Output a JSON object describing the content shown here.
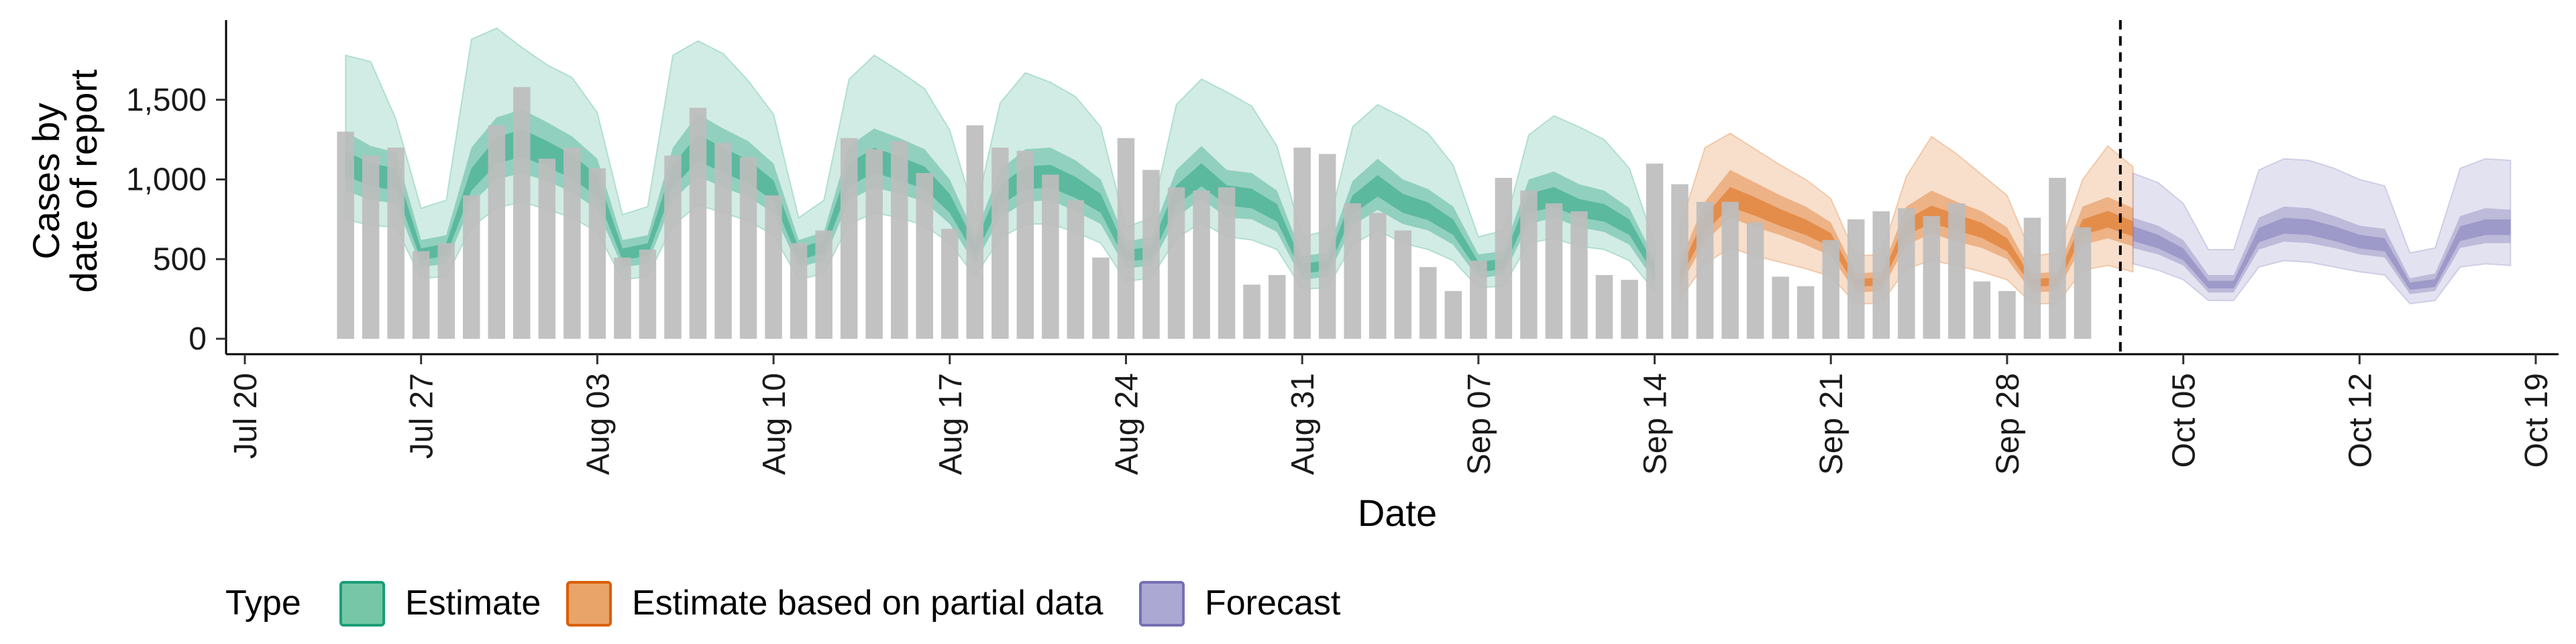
{
  "chart_data": {
    "type": "bar",
    "title": "",
    "xlabel": "Date",
    "ylabel_lines": [
      "Cases by",
      "date of report"
    ],
    "ylim": [
      0,
      2000
    ],
    "y_ticks": [
      0,
      500,
      1000,
      1500
    ],
    "y_tick_labels": [
      "0",
      "500",
      "1,000",
      "1,500"
    ],
    "x_tick_labels": [
      "Jul 20",
      "Jul 27",
      "Aug 03",
      "Aug 10",
      "Aug 17",
      "Aug 24",
      "Aug 31",
      "Sep 07",
      "Sep 14",
      "Sep 21",
      "Sep 28",
      "Oct 05",
      "Oct 12",
      "Oct 19"
    ],
    "x_axis": {
      "start_label": "Jul 20",
      "end_label": "Oct 19",
      "start_day": 0,
      "end_day": 91
    },
    "first_bar_day": 4,
    "bars": [
      1300,
      1150,
      1200,
      550,
      600,
      900,
      1340,
      1580,
      1130,
      1200,
      1070,
      510,
      560,
      1150,
      1450,
      1230,
      1140,
      900,
      600,
      680,
      1260,
      1190,
      1240,
      1040,
      690,
      1340,
      1200,
      1180,
      1030,
      870,
      510,
      1260,
      1060,
      950,
      930,
      950,
      340,
      400,
      1200,
      1160,
      850,
      790,
      680,
      450,
      300,
      490,
      1010,
      930,
      850,
      800,
      400,
      370,
      1100,
      970,
      860,
      860,
      730,
      390,
      330,
      620,
      750,
      800,
      820,
      770,
      850,
      360,
      300,
      760,
      1010,
      700
    ],
    "forecast_cutoff_day": 74.5,
    "bands": [
      {
        "type": "Estimate",
        "start_day": 4,
        "median": [
          1100,
          1030,
          1000,
          530,
          560,
          1000,
          1180,
          1230,
          1160,
          1080,
          960,
          530,
          560,
          1020,
          1200,
          1120,
          1050,
          930,
          530,
          580,
          1030,
          1120,
          1070,
          1010,
          850,
          560,
          900,
          1010,
          1020,
          950,
          850,
          520,
          540,
          900,
          1030,
          900,
          880,
          790,
          440,
          460,
          840,
          960,
          850,
          800,
          700,
          450,
          470,
          850,
          890,
          820,
          790,
          700,
          430
        ],
        "ci90": [
          [
            750,
            1780
          ],
          [
            710,
            1740
          ],
          [
            700,
            1380
          ],
          [
            380,
            820
          ],
          [
            390,
            870
          ],
          [
            700,
            1880
          ],
          [
            820,
            1950
          ],
          [
            860,
            1830
          ],
          [
            810,
            1720
          ],
          [
            760,
            1640
          ],
          [
            670,
            1420
          ],
          [
            370,
            780
          ],
          [
            390,
            830
          ],
          [
            710,
            1780
          ],
          [
            840,
            1870
          ],
          [
            790,
            1790
          ],
          [
            740,
            1620
          ],
          [
            650,
            1410
          ],
          [
            370,
            760
          ],
          [
            410,
            870
          ],
          [
            720,
            1630
          ],
          [
            790,
            1780
          ],
          [
            760,
            1680
          ],
          [
            710,
            1570
          ],
          [
            600,
            1310
          ],
          [
            390,
            780
          ],
          [
            630,
            1480
          ],
          [
            720,
            1670
          ],
          [
            720,
            1610
          ],
          [
            670,
            1520
          ],
          [
            600,
            1330
          ],
          [
            360,
            700
          ],
          [
            380,
            760
          ],
          [
            630,
            1470
          ],
          [
            730,
            1630
          ],
          [
            640,
            1550
          ],
          [
            620,
            1460
          ],
          [
            560,
            1210
          ],
          [
            310,
            640
          ],
          [
            320,
            680
          ],
          [
            590,
            1330
          ],
          [
            680,
            1470
          ],
          [
            600,
            1390
          ],
          [
            560,
            1290
          ],
          [
            490,
            1090
          ],
          [
            320,
            640
          ],
          [
            330,
            680
          ],
          [
            600,
            1280
          ],
          [
            630,
            1400
          ],
          [
            580,
            1330
          ],
          [
            560,
            1250
          ],
          [
            490,
            1070
          ],
          [
            300,
            600
          ]
        ],
        "ci50": [
          [
            930,
            1300
          ],
          [
            870,
            1210
          ],
          [
            850,
            1170
          ],
          [
            450,
            620
          ],
          [
            470,
            650
          ],
          [
            850,
            1200
          ],
          [
            1000,
            1390
          ],
          [
            1040,
            1440
          ],
          [
            990,
            1360
          ],
          [
            920,
            1270
          ],
          [
            810,
            1130
          ],
          [
            450,
            620
          ],
          [
            470,
            650
          ],
          [
            870,
            1200
          ],
          [
            1020,
            1410
          ],
          [
            950,
            1320
          ],
          [
            890,
            1240
          ],
          [
            790,
            1100
          ],
          [
            450,
            620
          ],
          [
            490,
            670
          ],
          [
            870,
            1210
          ],
          [
            950,
            1320
          ],
          [
            910,
            1260
          ],
          [
            860,
            1190
          ],
          [
            720,
            1000
          ],
          [
            470,
            650
          ],
          [
            760,
            1060
          ],
          [
            860,
            1190
          ],
          [
            870,
            1200
          ],
          [
            800,
            1120
          ],
          [
            720,
            1000
          ],
          [
            440,
            610
          ],
          [
            460,
            640
          ],
          [
            760,
            1060
          ],
          [
            880,
            1210
          ],
          [
            760,
            1060
          ],
          [
            750,
            1040
          ],
          [
            670,
            930
          ],
          [
            370,
            520
          ],
          [
            390,
            540
          ],
          [
            710,
            990
          ],
          [
            810,
            1130
          ],
          [
            720,
            1000
          ],
          [
            680,
            940
          ],
          [
            590,
            830
          ],
          [
            380,
            530
          ],
          [
            400,
            550
          ],
          [
            720,
            1000
          ],
          [
            760,
            1050
          ],
          [
            700,
            970
          ],
          [
            670,
            930
          ],
          [
            590,
            820
          ],
          [
            360,
            500
          ]
        ]
      },
      {
        "type": "Estimate based on partial data",
        "start_day": 57,
        "median": [
          400,
          720,
          890,
          830,
          760,
          700,
          620,
          350,
          360,
          700,
          780,
          730,
          680,
          590,
          350,
          360,
          700,
          750,
          690
        ],
        "ci90": [
          [
            250,
            700
          ],
          [
            470,
            1200
          ],
          [
            570,
            1290
          ],
          [
            520,
            1190
          ],
          [
            480,
            1090
          ],
          [
            440,
            1000
          ],
          [
            390,
            880
          ],
          [
            220,
            520
          ],
          [
            220,
            530
          ],
          [
            440,
            1020
          ],
          [
            490,
            1270
          ],
          [
            460,
            1160
          ],
          [
            420,
            1030
          ],
          [
            370,
            900
          ],
          [
            220,
            520
          ],
          [
            220,
            540
          ],
          [
            430,
            1000
          ],
          [
            460,
            1210
          ],
          [
            420,
            1080
          ]
        ],
        "ci50": [
          [
            330,
            480
          ],
          [
            610,
            860
          ],
          [
            760,
            1060
          ],
          [
            700,
            980
          ],
          [
            650,
            900
          ],
          [
            590,
            830
          ],
          [
            520,
            730
          ],
          [
            290,
            410
          ],
          [
            300,
            420
          ],
          [
            590,
            830
          ],
          [
            660,
            930
          ],
          [
            610,
            860
          ],
          [
            570,
            800
          ],
          [
            500,
            700
          ],
          [
            290,
            410
          ],
          [
            300,
            420
          ],
          [
            590,
            830
          ],
          [
            630,
            890
          ],
          [
            580,
            820
          ]
        ]
      },
      {
        "type": "Forecast",
        "start_day": 75,
        "median": [
          660,
          610,
          530,
          340,
          340,
          650,
          710,
          700,
          660,
          610,
          590,
          330,
          350,
          660,
          700,
          700
        ],
        "ci90": [
          [
            470,
            1040
          ],
          [
            430,
            980
          ],
          [
            370,
            850
          ],
          [
            240,
            560
          ],
          [
            240,
            560
          ],
          [
            450,
            1060
          ],
          [
            490,
            1130
          ],
          [
            480,
            1120
          ],
          [
            450,
            1070
          ],
          [
            420,
            1000
          ],
          [
            400,
            960
          ],
          [
            220,
            540
          ],
          [
            240,
            570
          ],
          [
            450,
            1070
          ],
          [
            470,
            1130
          ],
          [
            460,
            1120
          ]
        ],
        "ci50": [
          [
            570,
            760
          ],
          [
            530,
            710
          ],
          [
            460,
            620
          ],
          [
            290,
            400
          ],
          [
            290,
            400
          ],
          [
            560,
            760
          ],
          [
            610,
            830
          ],
          [
            600,
            820
          ],
          [
            570,
            770
          ],
          [
            530,
            710
          ],
          [
            510,
            690
          ],
          [
            280,
            380
          ],
          [
            300,
            410
          ],
          [
            570,
            770
          ],
          [
            600,
            820
          ],
          [
            600,
            810
          ]
        ]
      }
    ],
    "legend": {
      "title": "Type",
      "position": "bottom",
      "items": [
        "Estimate",
        "Estimate based on partial data",
        "Forecast"
      ]
    },
    "colors": {
      "bar": "#bdbdbd",
      "Estimate": "#1b9e77",
      "Estimate based on partial data": "#d95f02",
      "Forecast": "#7570b3",
      "legend_fill": {
        "Estimate": "#75c7a7",
        "Estimate based on partial data": "#e9a469",
        "Forecast": "#aba8d4"
      },
      "axis": "#000000"
    }
  }
}
